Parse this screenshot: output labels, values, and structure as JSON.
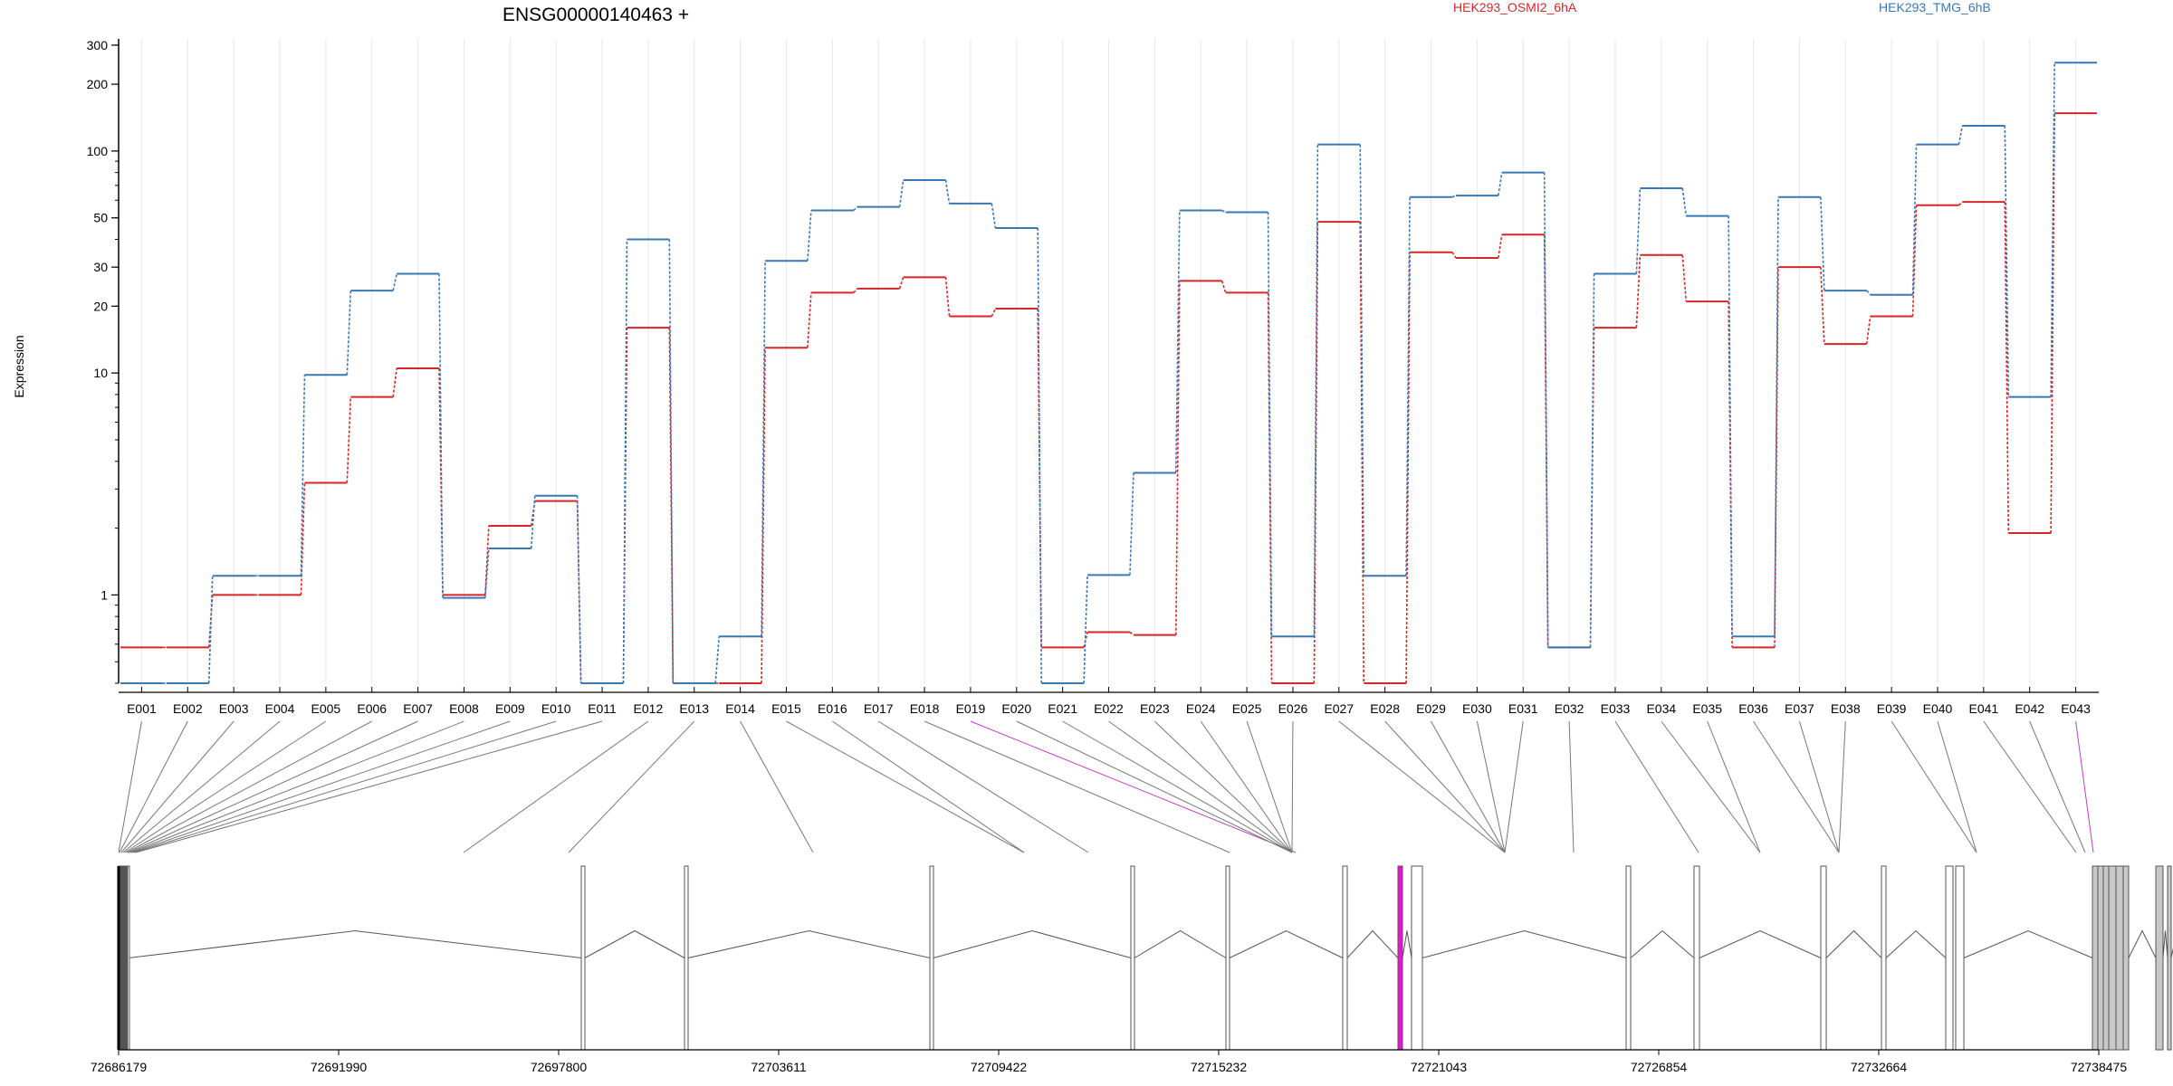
{
  "chart_data": {
    "type": "line",
    "title": "ENSG00000140463 +",
    "xlabel": "",
    "ylabel": "Expression",
    "y_scale": "log",
    "ylim": [
      0.4,
      320
    ],
    "y_ticks": [
      1,
      10,
      20,
      30,
      50,
      100,
      200,
      300
    ],
    "y_tick_labels": [
      "1",
      "10",
      "20",
      "30",
      "50",
      "100",
      "200",
      "300"
    ],
    "grid": true,
    "legend_placement": "top",
    "categories": [
      "E001",
      "E002",
      "E003",
      "E004",
      "E005",
      "E006",
      "E007",
      "E008",
      "E009",
      "E010",
      "E011",
      "E012",
      "E013",
      "E014",
      "E015",
      "E016",
      "E017",
      "E018",
      "E019",
      "E020",
      "E021",
      "E022",
      "E023",
      "E024",
      "E025",
      "E026",
      "E027",
      "E028",
      "E029",
      "E030",
      "E031",
      "E032",
      "E033",
      "E034",
      "E035",
      "E036",
      "E037",
      "E038",
      "E039",
      "E040",
      "E041",
      "E042",
      "E043"
    ],
    "highlighted_exons": [
      "E019",
      "E043"
    ],
    "series": [
      {
        "name": "HEK293_OSMI2_6hA",
        "color": "#d62728",
        "values": [
          0.58,
          0.58,
          1.0,
          1.0,
          3.2,
          7.8,
          10.5,
          1.0,
          2.05,
          2.65,
          0.4,
          16,
          0.4,
          0.4,
          13,
          23,
          24,
          27,
          18,
          19.5,
          0.58,
          0.68,
          0.66,
          26,
          23,
          0.4,
          48,
          0.4,
          35,
          33,
          42,
          0.58,
          16,
          34,
          21,
          0.58,
          30,
          13.5,
          18,
          57,
          59,
          1.9,
          148
        ]
      },
      {
        "name": "HEK293_TMG_6hB",
        "color": "#3a78b5",
        "values": [
          0.4,
          0.4,
          1.22,
          1.22,
          9.8,
          23.5,
          28,
          0.97,
          1.62,
          2.8,
          0.4,
          40,
          0.4,
          0.65,
          32,
          54,
          56,
          74,
          58,
          45,
          0.4,
          1.23,
          3.55,
          54,
          53,
          0.65,
          107,
          1.22,
          62,
          63,
          80,
          0.58,
          28,
          68,
          51,
          0.65,
          62,
          23.5,
          22.5,
          107,
          130,
          7.8,
          250
        ]
      }
    ],
    "genomic_axis": {
      "tick_labels": [
        "72686179",
        "72691990",
        "72697800",
        "72703611",
        "72709422",
        "72715232",
        "72721043",
        "72726854",
        "72732664",
        "72738475"
      ],
      "min": 72686179,
      "max": 72738475
    },
    "exon_colors": {
      "normal": "#ffffff",
      "alt": "#c8c8c8",
      "highlight": "#ee11dd",
      "edge": "#555555"
    }
  }
}
